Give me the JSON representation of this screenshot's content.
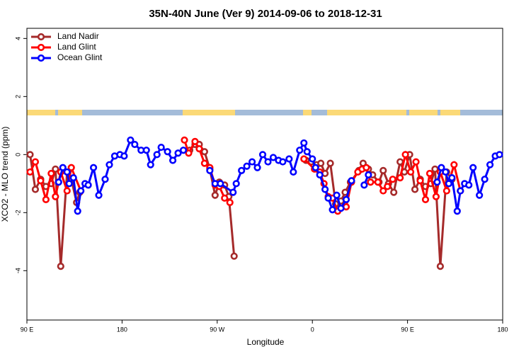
{
  "chart_data": {
    "type": "line",
    "title": "35N-40N June (Ver 9)   2014-09-06 to 2018-12-31",
    "x_label": "Longitude",
    "y_label": "XCO2 - MLO trend (ppm)",
    "xlim": [
      90,
      540
    ],
    "ylim": [
      -5.7,
      4.35
    ],
    "xticks": [
      {
        "value": 90,
        "label": "90 E"
      },
      {
        "value": 180,
        "label": "180"
      },
      {
        "value": 270,
        "label": "90 W"
      },
      {
        "value": 360,
        "label": "0"
      },
      {
        "value": 450,
        "label": "90 E"
      },
      {
        "value": 540,
        "label": "180"
      }
    ],
    "yticks": [
      -4,
      -2,
      0,
      2,
      4
    ],
    "legend": "top-left",
    "series": [
      {
        "name": "Land Nadir",
        "color": "#a52a2a",
        "x": [
          93,
          98,
          103,
          108,
          113,
          117,
          122,
          128,
          132,
          137,
          140,
          null,
          244,
          249,
          253,
          258,
          263,
          268,
          272,
          277,
          281,
          286,
          null,
          354,
          359,
          364,
          368,
          372,
          377,
          382,
          387,
          391,
          396,
          404,
          408,
          413,
          417,
          423,
          427,
          432,
          437,
          443,
          447,
          452,
          457,
          462,
          467,
          472,
          476,
          481,
          487,
          492
        ],
        "values": [
          0,
          -1.2,
          -0.85,
          -1.1,
          -1.0,
          -0.5,
          -3.85,
          -0.6,
          -0.85,
          -1.65,
          -1.3,
          null,
          0.15,
          0.35,
          0.35,
          0.1,
          -0.5,
          -1.4,
          -0.95,
          -1.05,
          -1.45,
          -3.5,
          null,
          -0.2,
          -0.25,
          -0.35,
          -0.3,
          -0.65,
          -0.3,
          -1.7,
          -1.6,
          -1.3,
          -0.95,
          -0.55,
          -0.3,
          -0.5,
          -0.7,
          -0.95,
          -0.55,
          -1.0,
          -1.3,
          -0.25,
          -0.6,
          0,
          -1.2,
          -0.85,
          -1.1,
          -1.0,
          -0.5,
          -3.85,
          -0.6,
          -0.85
        ]
      },
      {
        "name": "Land Glint",
        "color": "#ff0000",
        "x": [
          93,
          98,
          103,
          108,
          113,
          117,
          122,
          128,
          132,
          141,
          null,
          239,
          243,
          249,
          253,
          258,
          263,
          268,
          272,
          277,
          282,
          null,
          352,
          362,
          367,
          371,
          375,
          379,
          384,
          392,
          397,
          403,
          407,
          411,
          415,
          422,
          427,
          431,
          436,
          443,
          448,
          453,
          458,
          462,
          467,
          471,
          477,
          481,
          487,
          494,
          500
        ],
        "values": [
          -0.6,
          -0.25,
          -0.9,
          -1.55,
          -0.65,
          -1.45,
          -0.6,
          -1.25,
          -0.45,
          -1.25,
          null,
          0.5,
          0.05,
          0.45,
          0.2,
          -0.3,
          -0.45,
          -1.05,
          -1.1,
          -1.5,
          -1.65,
          null,
          -0.15,
          -0.5,
          -0.6,
          -1.0,
          -1.45,
          -1.5,
          -1.95,
          -1.8,
          -0.95,
          -0.6,
          -0.5,
          -0.45,
          -0.95,
          -0.95,
          -1.25,
          -1.1,
          -0.85,
          -0.8,
          0,
          -0.6,
          -0.25,
          -0.9,
          -1.55,
          -0.65,
          -1.45,
          -0.6,
          -1.25,
          -0.35,
          -1.25
        ]
      },
      {
        "name": "Ocean Glint",
        "color": "#0000ff",
        "x": [
          120,
          124,
          128,
          130,
          134,
          138,
          141,
          145,
          148,
          153,
          158,
          164,
          168,
          173,
          178,
          182,
          188,
          192,
          198,
          203,
          207,
          213,
          217,
          223,
          228,
          233,
          238,
          null,
          263,
          268,
          273,
          285,
          288,
          293,
          298,
          303,
          308,
          313,
          318,
          323,
          328,
          332,
          338,
          342,
          348,
          352,
          355,
          360,
          363,
          367,
          372,
          375,
          379,
          383,
          387,
          392,
          397,
          null,
          409,
          413,
          null,
          478,
          482,
          486,
          489,
          492,
          497,
          500,
          504,
          508,
          512,
          518,
          523,
          528,
          533,
          537
        ],
        "values": [
          -0.95,
          -0.45,
          -0.6,
          -1.0,
          -0.8,
          -1.95,
          -1.25,
          -1.0,
          -1.05,
          -0.45,
          -1.4,
          -0.85,
          -0.35,
          -0.05,
          0,
          -0.05,
          0.5,
          0.35,
          0.15,
          0.15,
          -0.35,
          0,
          0.25,
          0.1,
          -0.2,
          0.05,
          0.15,
          null,
          -0.55,
          -1.0,
          -1.0,
          -1.3,
          -1.0,
          -0.55,
          -0.4,
          -0.25,
          -0.45,
          0,
          -0.25,
          -0.1,
          -0.2,
          -0.25,
          -0.15,
          -0.6,
          0.15,
          0.4,
          0.1,
          -0.15,
          -0.45,
          -0.7,
          -1.2,
          -1.5,
          -1.9,
          -1.4,
          -1.85,
          -1.55,
          -0.9,
          null,
          -1.05,
          -0.7,
          null,
          -0.95,
          -0.45,
          -0.6,
          -1.0,
          -0.8,
          -1.95,
          -1.25,
          -1.0,
          -1.05,
          -0.45,
          -1.4,
          -0.85,
          -0.35,
          -0.05,
          0
        ]
      }
    ]
  }
}
